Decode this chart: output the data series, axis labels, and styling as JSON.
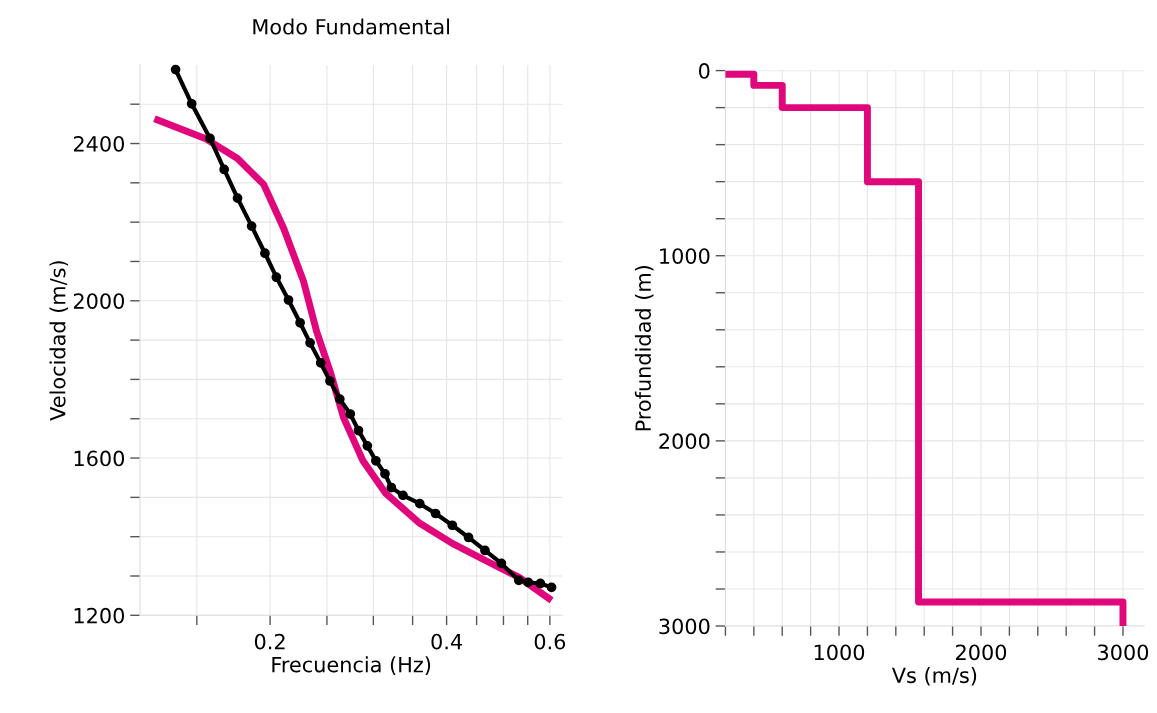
{
  "chart_data": [
    {
      "type": "line",
      "title": "Modo Fundamental",
      "xlabel": "Frecuencia (Hz)",
      "ylabel": "Velocidad (m/s)",
      "log": "x",
      "grid": true,
      "xlim": [
        0.12,
        0.63
      ],
      "ylim": [
        1200,
        2600
      ],
      "xticks": [
        {
          "value": 0.15,
          "label": null
        },
        0.2,
        {
          "value": 0.25,
          "label": null
        },
        {
          "value": 0.3,
          "label": null
        },
        {
          "value": 0.35,
          "label": null
        },
        0.4,
        {
          "value": 0.45,
          "label": null
        },
        {
          "value": 0.5,
          "label": null
        },
        {
          "value": 0.55,
          "label": null
        },
        0.6
      ],
      "yticks": [
        1200,
        {
          "value": 1300,
          "label": null
        },
        {
          "value": 1400,
          "label": null
        },
        {
          "value": 1500,
          "label": null
        },
        1600,
        {
          "value": 1700,
          "label": null
        },
        {
          "value": 1800,
          "label": null
        },
        {
          "value": 1900,
          "label": null
        },
        2000,
        {
          "value": 2100,
          "label": null
        },
        {
          "value": 2200,
          "label": null
        },
        {
          "value": 2300,
          "label": null
        },
        2400,
        {
          "value": 2500,
          "label": null
        }
      ],
      "series": [
        {
          "color": "#e0077d",
          "marker": "none",
          "x": [
            0.127,
            0.155,
            0.176,
            0.195,
            0.211,
            0.228,
            0.24,
            0.253,
            0.267,
            0.288,
            0.315,
            0.36,
            0.409,
            0.465,
            0.531,
            0.604
          ],
          "values": [
            2463,
            2413,
            2362,
            2296,
            2184,
            2050,
            1923,
            1822,
            1702,
            1593,
            1510,
            1434,
            1383,
            1340,
            1297,
            1238
          ]
        },
        {
          "color": "#000000",
          "marker": "circle",
          "x": [
            0.138,
            0.147,
            0.158,
            0.167,
            0.176,
            0.186,
            0.196,
            0.205,
            0.215,
            0.225,
            0.234,
            0.244,
            0.253,
            0.263,
            0.274,
            0.283,
            0.293,
            0.303,
            0.314,
            0.322,
            0.337,
            0.36,
            0.383,
            0.409,
            0.436,
            0.465,
            0.496,
            0.531,
            0.551,
            0.578,
            0.604
          ],
          "values": [
            2588,
            2501,
            2413,
            2334,
            2261,
            2190,
            2121,
            2060,
            2002,
            1944,
            1893,
            1842,
            1796,
            1750,
            1712,
            1670,
            1631,
            1593,
            1560,
            1525,
            1505,
            1484,
            1459,
            1429,
            1398,
            1365,
            1332,
            1289,
            1284,
            1281,
            1271
          ]
        }
      ]
    },
    {
      "type": "line",
      "xlabel": "Vs (m/s)",
      "ylabel": "Profundidad (m)",
      "grid": true,
      "xlim": [
        200,
        3150
      ],
      "ylim": [
        3000,
        0
      ],
      "xticks": [
        {
          "value": 200,
          "label": null
        },
        {
          "value": 400,
          "label": null
        },
        {
          "value": 600,
          "label": null
        },
        {
          "value": 800,
          "label": null
        },
        1000,
        {
          "value": 1200,
          "label": null
        },
        {
          "value": 1400,
          "label": null
        },
        {
          "value": 1600,
          "label": null
        },
        {
          "value": 1800,
          "label": null
        },
        2000,
        {
          "value": 2200,
          "label": null
        },
        {
          "value": 2400,
          "label": null
        },
        {
          "value": 2600,
          "label": null
        },
        {
          "value": 2800,
          "label": null
        },
        3000
      ],
      "yticks": [
        0,
        {
          "value": 200,
          "label": null
        },
        {
          "value": 400,
          "label": null
        },
        {
          "value": 600,
          "label": null
        },
        {
          "value": 800,
          "label": null
        },
        1000,
        {
          "value": 1200,
          "label": null
        },
        {
          "value": 1400,
          "label": null
        },
        {
          "value": 1600,
          "label": null
        },
        {
          "value": 1800,
          "label": null
        },
        2000,
        {
          "value": 2200,
          "label": null
        },
        {
          "value": 2400,
          "label": null
        },
        {
          "value": 2600,
          "label": null
        },
        {
          "value": 2800,
          "label": null
        },
        3000
      ],
      "series": [
        {
          "color": "#e0077d",
          "marker": "none",
          "x": [
            200,
            400,
            400,
            600,
            600,
            1200,
            1200,
            1560,
            1560,
            3000,
            3000
          ],
          "values": [
            20,
            20,
            80,
            80,
            200,
            200,
            600,
            600,
            2870,
            2870,
            3000
          ]
        }
      ]
    }
  ]
}
